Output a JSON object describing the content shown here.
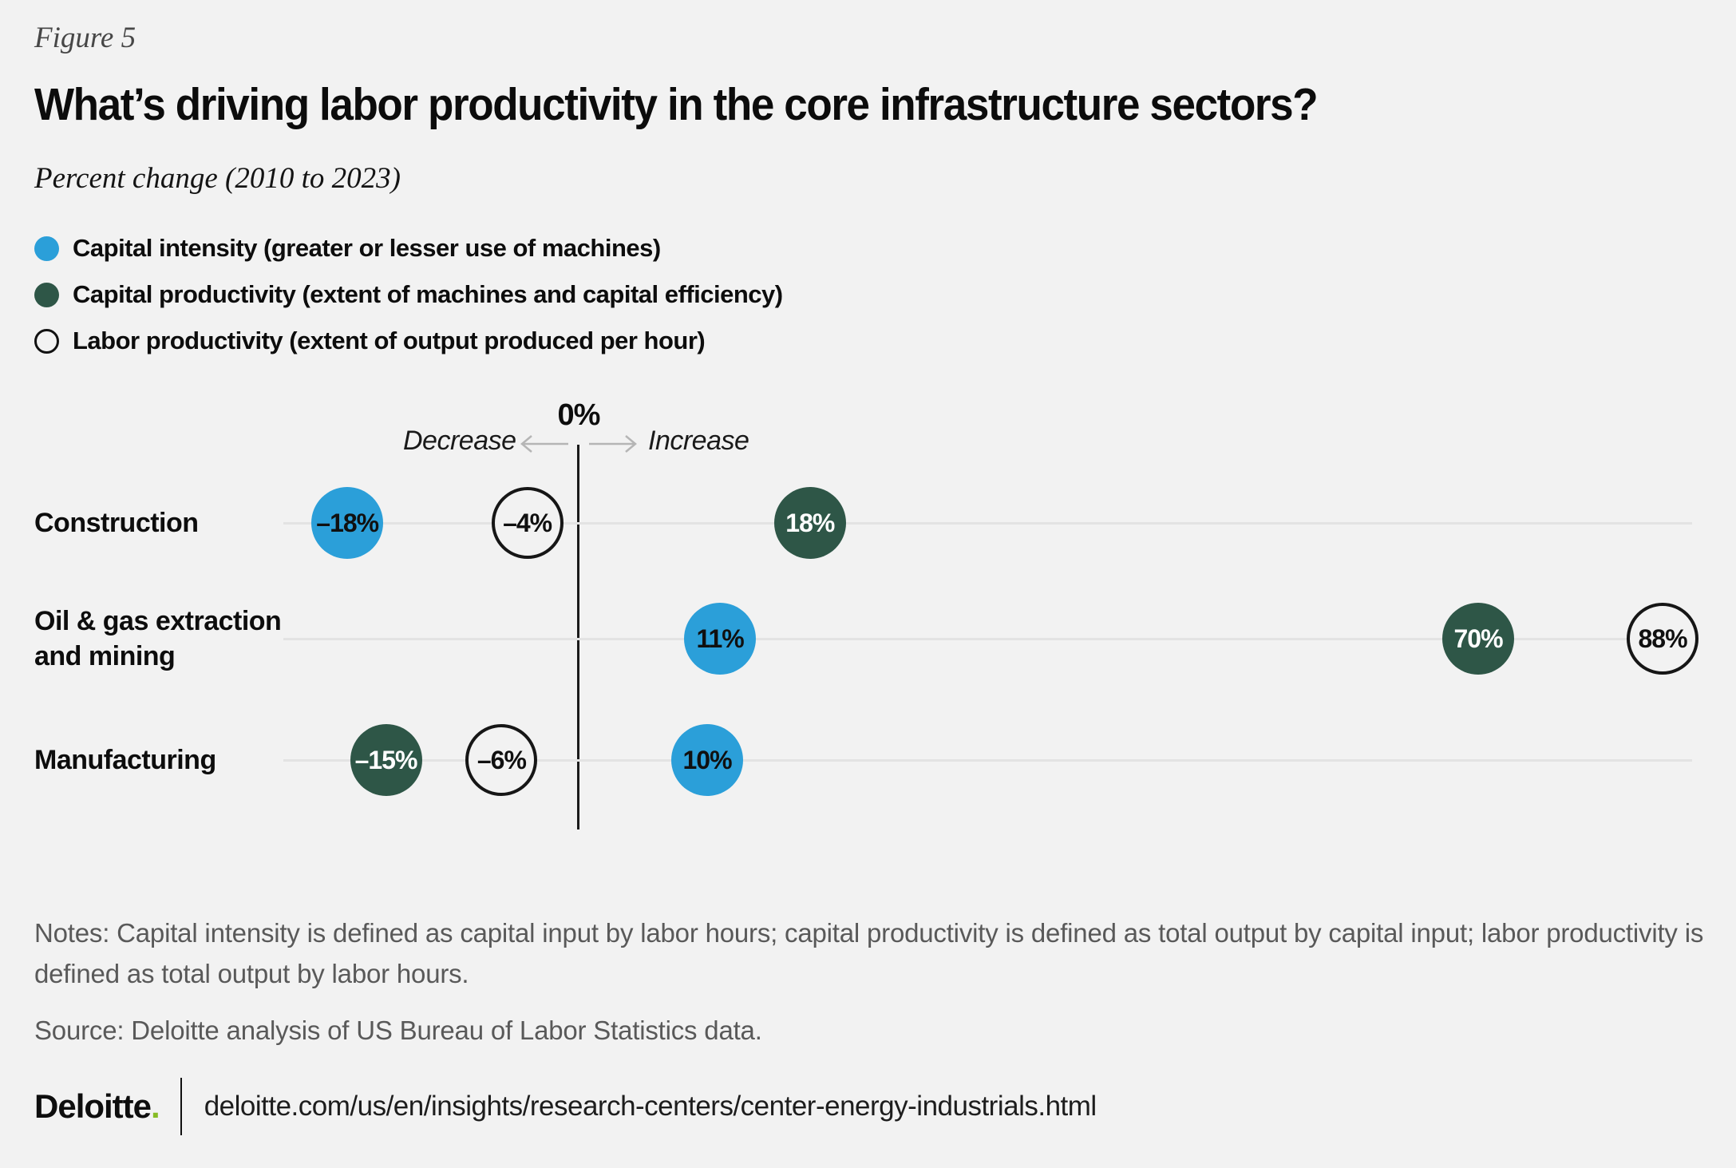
{
  "figure_label": "Figure 5",
  "title": "What’s driving labor productivity in the core infrastructure sectors?",
  "subtitle": "Percent change (2010 to 2023)",
  "legend": [
    {
      "label": "Capital intensity (greater or lesser use of machines)",
      "swatch": "blue"
    },
    {
      "label": "Capital productivity (extent of machines and capital efficiency)",
      "swatch": "green"
    },
    {
      "label": "Labor productivity (extent of output produced per hour)",
      "swatch": "white"
    }
  ],
  "colors": {
    "background": "#f2f2f2",
    "blue": "#2b9fd9",
    "green": "#2e5647",
    "row_line": "#e3e3e3",
    "axis_line": "#1b1b1b",
    "arrow_gray": "#b5b5b5",
    "deloitte_green": "#86bc25"
  },
  "chart_data": {
    "type": "scatter",
    "title": "What’s driving labor productivity in the core infrastructure sectors?",
    "subtitle": "Percent change (2010 to 2023)",
    "value_unit": "percent",
    "xlim": [
      -24,
      90
    ],
    "grid": false,
    "legend_position": "top-left",
    "axis": {
      "zero_label": "0%",
      "decrease_label": "Decrease",
      "increase_label": "Increase"
    },
    "categories": [
      "Construction",
      "Oil & gas extraction and mining",
      "Manufacturing"
    ],
    "category_lines": [
      [
        "Construction"
      ],
      [
        "Oil & gas extraction",
        "and mining"
      ],
      [
        "Manufacturing"
      ]
    ],
    "series": [
      {
        "name": "Capital intensity",
        "color_key": "blue",
        "values": [
          -18,
          11,
          10
        ]
      },
      {
        "name": "Capital productivity",
        "color_key": "green",
        "values": [
          18,
          70,
          -15
        ]
      },
      {
        "name": "Labor productivity",
        "color_key": "white",
        "values": [
          -4,
          88,
          -6
        ]
      }
    ]
  },
  "notes": "Notes: Capital intensity is defined as capital input by labor hours; capital productivity is defined as total output by capital input; labor productivity is defined as total output by labor hours.",
  "source": "Source: Deloitte analysis of US Bureau of Labor Statistics data.",
  "footer": {
    "logo": "Deloitte",
    "logo_dot": ".",
    "url": "deloitte.com/us/en/insights/research-centers/center-energy-industrials.html"
  }
}
